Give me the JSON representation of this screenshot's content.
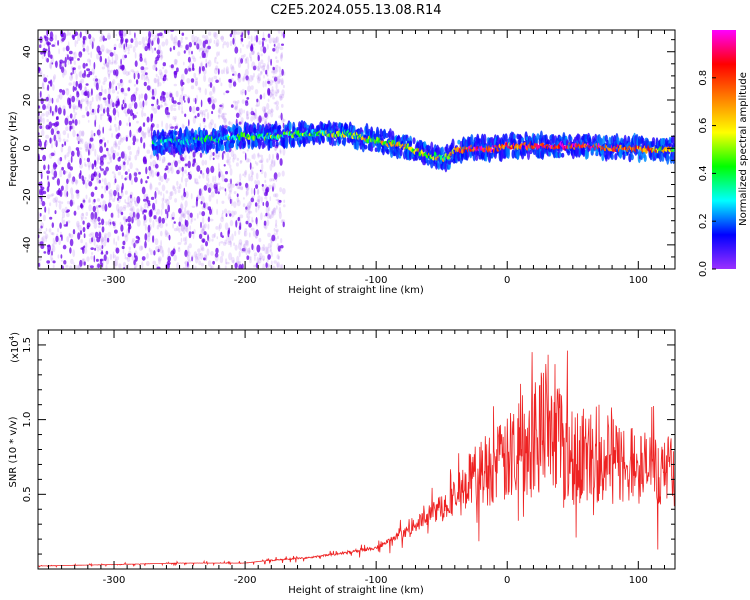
{
  "figure": {
    "title": "C2E5.2024.055.13.08.R14"
  },
  "chart_data": [
    {
      "type": "heatmap",
      "title": "C2E5.2024.055.13.08.R14",
      "xlabel": "Height of straight line (km)",
      "ylabel": "Frequency (Hz)",
      "xlim": [
        -358,
        128
      ],
      "ylim": [
        -50,
        49
      ],
      "xticks": [
        -300,
        -200,
        -100,
        0,
        100
      ],
      "xtick_labels": [
        "-300",
        "-200",
        "-100",
        "0",
        "100"
      ],
      "yticks": [
        -40,
        -20,
        0,
        20,
        40
      ],
      "ytick_labels": [
        "-40",
        "-20",
        "0",
        "20",
        "40"
      ],
      "colorbar": {
        "label": "Normalized spectral amplitude",
        "range": [
          0,
          1
        ],
        "ticks": [
          0,
          0.2,
          0.4,
          0.6,
          0.8
        ],
        "tick_labels": [
          "0.0",
          "0.2",
          "0.4",
          "0.6",
          "0.8"
        ],
        "colormap": [
          "#9b30ff",
          "#0000ff",
          "#00ffff",
          "#00ff00",
          "#ffff00",
          "#ff8000",
          "#ff0000",
          "#ff00ff"
        ]
      },
      "ridge": {
        "x": [
          -270,
          -250,
          -220,
          -200,
          -180,
          -160,
          -140,
          -120,
          -100,
          -80,
          -60,
          -45,
          -40,
          -30,
          -20,
          -10,
          0,
          20,
          40,
          60,
          80,
          100,
          120,
          128
        ],
        "y": [
          2,
          3,
          4,
          5,
          5,
          6,
          6,
          6,
          3,
          1,
          -3,
          -4,
          -1,
          0,
          0,
          0,
          1,
          1,
          1,
          1,
          0,
          0,
          -1,
          0
        ],
        "amplitude": [
          0.25,
          0.3,
          0.3,
          0.35,
          0.4,
          0.45,
          0.45,
          0.5,
          0.55,
          0.6,
          0.55,
          0.5,
          0.8,
          0.85,
          0.9,
          0.85,
          0.75,
          0.85,
          0.9,
          0.85,
          0.8,
          0.75,
          0.6,
          0.5
        ]
      },
      "noise_band": {
        "x_range": [
          -358,
          -170
        ],
        "amplitude_range": [
          0.05,
          0.2
        ]
      },
      "grid": false,
      "colors": {
        "noise": "#8a2be2"
      }
    },
    {
      "type": "line",
      "xlabel": "Height of straight line (km)",
      "ylabel": "SNR (10 * v/v)",
      "scale_label": "(x10",
      "scale_exponent": "4",
      "scale_suffix": ")",
      "xlim": [
        -358,
        128
      ],
      "ylim": [
        0,
        1.6
      ],
      "xticks": [
        -300,
        -200,
        -100,
        0,
        100
      ],
      "xtick_labels": [
        "-300",
        "-200",
        "-100",
        "0",
        "100"
      ],
      "yticks": [
        0.5,
        1.0,
        1.5
      ],
      "ytick_labels": [
        "0.5",
        "1.0",
        "1.5"
      ],
      "envelope": {
        "x": [
          -358,
          -300,
          -250,
          -200,
          -180,
          -150,
          -120,
          -100,
          -80,
          -60,
          -40,
          -30,
          -20,
          -10,
          0,
          10,
          20,
          25,
          30,
          40,
          50,
          60,
          70,
          80,
          90,
          100,
          110,
          120,
          128
        ],
        "y": [
          0.02,
          0.03,
          0.04,
          0.04,
          0.06,
          0.08,
          0.12,
          0.15,
          0.25,
          0.4,
          0.55,
          0.7,
          0.8,
          0.85,
          0.9,
          1.1,
          1.2,
          1.25,
          1.25,
          1.15,
          1.0,
          0.95,
          0.95,
          0.9,
          0.88,
          0.85,
          0.82,
          0.78,
          0.8
        ]
      },
      "series": [
        {
          "color": "#ee2222"
        }
      ],
      "grid": false
    }
  ]
}
